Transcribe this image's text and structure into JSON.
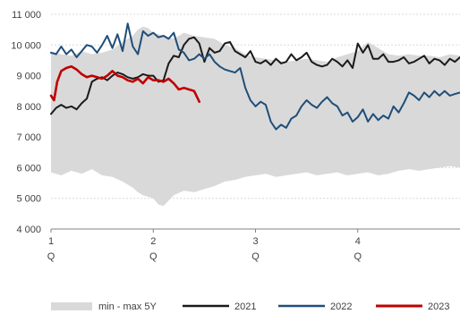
{
  "chart_data": {
    "type": "line",
    "title": "",
    "xlabel": "",
    "ylabel": "",
    "ylim": [
      4000,
      11000
    ],
    "yticks": [
      4000,
      5000,
      6000,
      7000,
      8000,
      9000,
      10000,
      11000
    ],
    "ytick_labels": [
      "4 000",
      "5 000",
      "6 000",
      "7 000",
      "8 000",
      "9 000",
      "10 000",
      "11 000"
    ],
    "xlim": [
      1,
      5
    ],
    "xticks": [
      {
        "value": 1,
        "label": "1",
        "sub": "Q"
      },
      {
        "value": 2,
        "label": "2",
        "sub": "Q"
      },
      {
        "value": 3,
        "label": "3",
        "sub": "Q"
      },
      {
        "value": 4,
        "label": "4",
        "sub": "Q"
      }
    ],
    "grid": true,
    "legend_position": "bottom",
    "band": {
      "name": "min - max 5Y",
      "color": "#d9d9d9",
      "x": [
        1.0,
        1.1,
        1.2,
        1.3,
        1.4,
        1.5,
        1.6,
        1.7,
        1.8,
        1.85,
        1.9,
        1.95,
        2.0,
        2.05,
        2.1,
        2.2,
        2.3,
        2.4,
        2.5,
        2.6,
        2.7,
        2.8,
        2.9,
        3.0,
        3.1,
        3.2,
        3.3,
        3.4,
        3.5,
        3.6,
        3.7,
        3.8,
        3.9,
        4.0,
        4.1,
        4.2,
        4.3,
        4.4,
        4.5,
        4.6,
        4.7,
        4.8,
        4.9,
        5.0
      ],
      "low": [
        5850,
        5750,
        5900,
        5800,
        5950,
        5750,
        5700,
        5550,
        5350,
        5200,
        5100,
        5050,
        5000,
        4800,
        4750,
        5100,
        5250,
        5200,
        5300,
        5400,
        5550,
        5600,
        5700,
        5750,
        5800,
        5700,
        5750,
        5800,
        5850,
        5750,
        5800,
        5850,
        5750,
        5800,
        5850,
        5750,
        5800,
        5900,
        5950,
        5900,
        5950,
        6000,
        6050,
        6000
      ],
      "high": [
        9800,
        9700,
        9650,
        9800,
        9700,
        9750,
        9850,
        10100,
        10300,
        10500,
        10600,
        10550,
        10400,
        10350,
        10300,
        10200,
        10400,
        10300,
        10250,
        10200,
        10000,
        9900,
        9700,
        9600,
        9550,
        9500,
        9450,
        9500,
        9550,
        9500,
        9450,
        9600,
        9700,
        9800,
        10100,
        9900,
        9700,
        9650,
        9700,
        9650,
        9650,
        9600,
        9700,
        9650
      ]
    },
    "series": [
      {
        "name": "2021",
        "color": "#1a1a1a",
        "x": [
          1.0,
          1.05,
          1.1,
          1.15,
          1.2,
          1.25,
          1.3,
          1.35,
          1.4,
          1.45,
          1.5,
          1.55,
          1.6,
          1.65,
          1.7,
          1.75,
          1.8,
          1.85,
          1.9,
          1.95,
          2.0,
          2.05,
          2.1,
          2.15,
          2.2,
          2.25,
          2.3,
          2.35,
          2.4,
          2.45,
          2.5,
          2.55,
          2.6,
          2.65,
          2.7,
          2.75,
          2.8,
          2.85,
          2.9,
          2.95,
          3.0,
          3.05,
          3.1,
          3.15,
          3.2,
          3.25,
          3.3,
          3.35,
          3.4,
          3.45,
          3.5,
          3.55,
          3.6,
          3.65,
          3.7,
          3.75,
          3.8,
          3.85,
          3.9,
          3.95,
          4.0,
          4.05,
          4.1,
          4.15,
          4.2,
          4.25,
          4.3,
          4.35,
          4.4,
          4.45,
          4.5,
          4.55,
          4.6,
          4.65,
          4.7,
          4.75,
          4.8,
          4.85,
          4.9,
          4.95,
          5.0
        ],
        "values": [
          7750,
          7950,
          8050,
          7950,
          8000,
          7900,
          8100,
          8250,
          8800,
          8900,
          8950,
          8850,
          9000,
          9100,
          9050,
          8950,
          8900,
          8950,
          9050,
          9000,
          9000,
          8800,
          8850,
          9400,
          9650,
          9600,
          10000,
          10200,
          10250,
          10050,
          9450,
          9900,
          9750,
          9800,
          10050,
          10100,
          9800,
          9700,
          9600,
          9800,
          9450,
          9400,
          9500,
          9350,
          9550,
          9400,
          9450,
          9700,
          9500,
          9600,
          9750,
          9450,
          9350,
          9300,
          9350,
          9550,
          9450,
          9300,
          9500,
          9250,
          10050,
          9750,
          10000,
          9550,
          9550,
          9700,
          9450,
          9450,
          9500,
          9600,
          9400,
          9450,
          9550,
          9650,
          9400,
          9550,
          9500,
          9350,
          9550,
          9450,
          9600
        ]
      },
      {
        "name": "2022",
        "color": "#1f4e79",
        "x": [
          1.0,
          1.05,
          1.1,
          1.15,
          1.2,
          1.25,
          1.3,
          1.35,
          1.4,
          1.45,
          1.5,
          1.55,
          1.6,
          1.65,
          1.7,
          1.75,
          1.8,
          1.85,
          1.9,
          1.95,
          2.0,
          2.05,
          2.1,
          2.15,
          2.2,
          2.25,
          2.3,
          2.35,
          2.4,
          2.45,
          2.5,
          2.55,
          2.6,
          2.65,
          2.7,
          2.75,
          2.8,
          2.85,
          2.9,
          2.95,
          3.0,
          3.05,
          3.1,
          3.15,
          3.2,
          3.25,
          3.3,
          3.35,
          3.4,
          3.45,
          3.5,
          3.55,
          3.6,
          3.65,
          3.7,
          3.75,
          3.8,
          3.85,
          3.9,
          3.95,
          4.0,
          4.05,
          4.1,
          4.15,
          4.2,
          4.25,
          4.3,
          4.35,
          4.4,
          4.45,
          4.5,
          4.55,
          4.6,
          4.65,
          4.7,
          4.75,
          4.8,
          4.85,
          4.9,
          4.95,
          5.0
        ],
        "values": [
          9750,
          9700,
          9950,
          9700,
          9850,
          9600,
          9800,
          10000,
          9950,
          9750,
          10000,
          10300,
          9900,
          10350,
          9800,
          10700,
          9950,
          9700,
          10450,
          10300,
          10400,
          10250,
          10300,
          10200,
          10400,
          9850,
          9750,
          9500,
          9550,
          9700,
          9550,
          9700,
          9450,
          9300,
          9200,
          9150,
          9100,
          9250,
          8600,
          8200,
          8000,
          8150,
          8050,
          7500,
          7250,
          7400,
          7300,
          7600,
          7700,
          8000,
          8200,
          8050,
          7950,
          8150,
          8300,
          8100,
          8000,
          7700,
          7800,
          7500,
          7650,
          7900,
          7500,
          7750,
          7550,
          7700,
          7600,
          8000,
          7800,
          8100,
          8450,
          8350,
          8200,
          8450,
          8300,
          8500,
          8350,
          8500,
          8350,
          8400,
          8450
        ]
      },
      {
        "name": "2023",
        "color": "#c00000",
        "x": [
          1.0,
          1.03,
          1.06,
          1.1,
          1.15,
          1.2,
          1.25,
          1.3,
          1.35,
          1.4,
          1.45,
          1.5,
          1.55,
          1.6,
          1.65,
          1.7,
          1.75,
          1.8,
          1.85,
          1.9,
          1.95,
          2.0,
          2.05,
          2.1,
          2.15,
          2.2,
          2.25,
          2.3,
          2.35,
          2.4,
          2.45
        ],
        "values": [
          8350,
          8200,
          8800,
          9150,
          9250,
          9300,
          9200,
          9050,
          8950,
          9000,
          8950,
          8900,
          9000,
          9150,
          9000,
          8950,
          8850,
          8800,
          8900,
          8750,
          8950,
          8850,
          8850,
          8800,
          8900,
          8750,
          8550,
          8600,
          8550,
          8500,
          8150
        ]
      }
    ]
  }
}
